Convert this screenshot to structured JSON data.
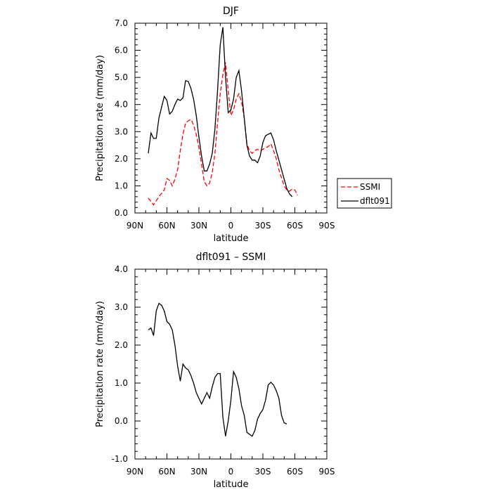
{
  "chart_data": [
    {
      "type": "line",
      "title": "DJF",
      "xlabel": "latitude",
      "ylabel": "Precipitation rate (mm/day)",
      "x_ticks": [
        {
          "value": 90,
          "label": "90N"
        },
        {
          "value": 60,
          "label": "60N"
        },
        {
          "value": 30,
          "label": "30N"
        },
        {
          "value": 0,
          "label": "0"
        },
        {
          "value": -30,
          "label": "30S"
        },
        {
          "value": -60,
          "label": "60S"
        },
        {
          "value": -90,
          "label": "90S"
        }
      ],
      "y_ticks": [
        "0.0",
        "1.0",
        "2.0",
        "3.0",
        "4.0",
        "5.0",
        "6.0",
        "7.0"
      ],
      "xlim": [
        90,
        -90
      ],
      "ylim": [
        0,
        7
      ],
      "legend_position": "right",
      "series": [
        {
          "name": "SSMI",
          "color": "#ff0000",
          "dash": "dashed",
          "points": [
            [
              77.5,
              0.55
            ],
            [
              72.5,
              0.3
            ],
            [
              67.5,
              0.6
            ],
            [
              62.5,
              0.85
            ],
            [
              60,
              1.27
            ],
            [
              57.5,
              1.2
            ],
            [
              55,
              1.0
            ],
            [
              52.5,
              1.25
            ],
            [
              50,
              1.6
            ],
            [
              47.5,
              2.3
            ],
            [
              45,
              2.9
            ],
            [
              42.5,
              3.3
            ],
            [
              40,
              3.4
            ],
            [
              37.5,
              3.45
            ],
            [
              35,
              3.25
            ],
            [
              32.5,
              2.9
            ],
            [
              30,
              2.4
            ],
            [
              27.5,
              1.8
            ],
            [
              25,
              1.15
            ],
            [
              22.5,
              1.0
            ],
            [
              20,
              1.1
            ],
            [
              17.5,
              1.5
            ],
            [
              15,
              2.2
            ],
            [
              12.5,
              3.3
            ],
            [
              10,
              4.4
            ],
            [
              7.5,
              5.1
            ],
            [
              5,
              5.55
            ],
            [
              2.5,
              4.5
            ],
            [
              0,
              3.6
            ],
            [
              -2.5,
              3.8
            ],
            [
              -5,
              4.2
            ],
            [
              -7.5,
              4.4
            ],
            [
              -10,
              4.1
            ],
            [
              -12.5,
              3.5
            ],
            [
              -15,
              2.55
            ],
            [
              -17.5,
              2.3
            ],
            [
              -20,
              2.2
            ],
            [
              -22.5,
              2.3
            ],
            [
              -25,
              2.35
            ],
            [
              -27.5,
              2.3
            ],
            [
              -30,
              2.35
            ],
            [
              -32.5,
              2.4
            ],
            [
              -35,
              2.45
            ],
            [
              -37.5,
              2.55
            ],
            [
              -40,
              2.3
            ],
            [
              -42.5,
              2.0
            ],
            [
              -45,
              1.6
            ],
            [
              -47.5,
              1.3
            ],
            [
              -50,
              1.0
            ],
            [
              -52.5,
              0.85
            ],
            [
              -55,
              0.8
            ],
            [
              -57.5,
              0.88
            ],
            [
              -60,
              0.85
            ],
            [
              -62.5,
              0.65
            ]
          ]
        },
        {
          "name": "dflt091",
          "color": "#000000",
          "dash": "solid",
          "points": [
            [
              77.5,
              2.2
            ],
            [
              75,
              2.95
            ],
            [
              72.5,
              2.75
            ],
            [
              70,
              2.75
            ],
            [
              67.5,
              3.5
            ],
            [
              65,
              3.9
            ],
            [
              62.5,
              4.3
            ],
            [
              60,
              4.15
            ],
            [
              57.5,
              3.65
            ],
            [
              55,
              3.75
            ],
            [
              52.5,
              4.0
            ],
            [
              50,
              4.2
            ],
            [
              47.5,
              4.15
            ],
            [
              45,
              4.25
            ],
            [
              42.5,
              4.88
            ],
            [
              40,
              4.85
            ],
            [
              37.5,
              4.6
            ],
            [
              35,
              4.2
            ],
            [
              32.5,
              3.6
            ],
            [
              30,
              2.8
            ],
            [
              27.5,
              2.1
            ],
            [
              25,
              1.55
            ],
            [
              22.5,
              1.55
            ],
            [
              20,
              1.8
            ],
            [
              17.5,
              2.2
            ],
            [
              15,
              3.1
            ],
            [
              12.5,
              4.5
            ],
            [
              10,
              6.2
            ],
            [
              7.5,
              6.85
            ],
            [
              5,
              5.0
            ],
            [
              2.5,
              3.7
            ],
            [
              0,
              3.8
            ],
            [
              -2.5,
              4.2
            ],
            [
              -5,
              5.0
            ],
            [
              -7.5,
              5.25
            ],
            [
              -10,
              4.5
            ],
            [
              -12.5,
              3.5
            ],
            [
              -15,
              2.5
            ],
            [
              -17.5,
              2.1
            ],
            [
              -20,
              1.95
            ],
            [
              -22.5,
              1.95
            ],
            [
              -25,
              1.85
            ],
            [
              -27.5,
              2.1
            ],
            [
              -30,
              2.6
            ],
            [
              -32.5,
              2.85
            ],
            [
              -35,
              2.9
            ],
            [
              -37.5,
              2.95
            ],
            [
              -40,
              2.7
            ],
            [
              -42.5,
              2.3
            ],
            [
              -45,
              1.95
            ],
            [
              -47.5,
              1.6
            ],
            [
              -50,
              1.25
            ],
            [
              -52.5,
              0.9
            ],
            [
              -55,
              0.7
            ],
            [
              -57.5,
              0.6
            ]
          ]
        }
      ]
    },
    {
      "type": "line",
      "title": "dflt091 – SSMI",
      "xlabel": "latitude",
      "ylabel": "Precipitation rate (mm/day)",
      "x_ticks": [
        {
          "value": 90,
          "label": "90N"
        },
        {
          "value": 60,
          "label": "60N"
        },
        {
          "value": 30,
          "label": "30N"
        },
        {
          "value": 0,
          "label": "0"
        },
        {
          "value": -30,
          "label": "30S"
        },
        {
          "value": -60,
          "label": "60S"
        },
        {
          "value": -90,
          "label": "90S"
        }
      ],
      "y_ticks": [
        "-1.0",
        "0.0",
        "1.0",
        "2.0",
        "3.0",
        "4.0"
      ],
      "xlim": [
        90,
        -90
      ],
      "ylim": [
        -1,
        4
      ],
      "series": [
        {
          "color": "#000000",
          "dash": "solid",
          "points": [
            [
              77.5,
              2.4
            ],
            [
              75,
              2.45
            ],
            [
              72.5,
              2.25
            ],
            [
              70,
              2.9
            ],
            [
              67.5,
              3.1
            ],
            [
              65,
              3.05
            ],
            [
              62.5,
              2.9
            ],
            [
              60,
              2.62
            ],
            [
              57.5,
              2.55
            ],
            [
              55,
              2.4
            ],
            [
              52.5,
              2.0
            ],
            [
              50,
              1.45
            ],
            [
              47.5,
              1.05
            ],
            [
              45,
              1.5
            ],
            [
              42.5,
              1.4
            ],
            [
              40,
              1.35
            ],
            [
              37.5,
              1.2
            ],
            [
              35,
              1.0
            ],
            [
              32.5,
              0.75
            ],
            [
              30,
              0.6
            ],
            [
              27.5,
              0.45
            ],
            [
              25,
              0.6
            ],
            [
              22.5,
              0.75
            ],
            [
              20,
              0.6
            ],
            [
              17.5,
              0.9
            ],
            [
              15,
              1.15
            ],
            [
              12.5,
              1.25
            ],
            [
              10,
              1.25
            ],
            [
              7.5,
              0.1
            ],
            [
              5,
              -0.4
            ],
            [
              2.5,
              0.0
            ],
            [
              0,
              0.55
            ],
            [
              -2.5,
              1.3
            ],
            [
              -5,
              1.15
            ],
            [
              -7.5,
              0.85
            ],
            [
              -10,
              0.4
            ],
            [
              -12.5,
              0.15
            ],
            [
              -15,
              -0.3
            ],
            [
              -17.5,
              -0.35
            ],
            [
              -20,
              -0.4
            ],
            [
              -22.5,
              -0.25
            ],
            [
              -25,
              0.05
            ],
            [
              -27.5,
              0.2
            ],
            [
              -30,
              0.3
            ],
            [
              -32.5,
              0.55
            ],
            [
              -35,
              0.95
            ],
            [
              -37.5,
              1.02
            ],
            [
              -40,
              0.95
            ],
            [
              -42.5,
              0.8
            ],
            [
              -45,
              0.6
            ],
            [
              -47.5,
              0.15
            ],
            [
              -50,
              -0.05
            ],
            [
              -52.5,
              -0.08
            ]
          ]
        }
      ]
    }
  ]
}
